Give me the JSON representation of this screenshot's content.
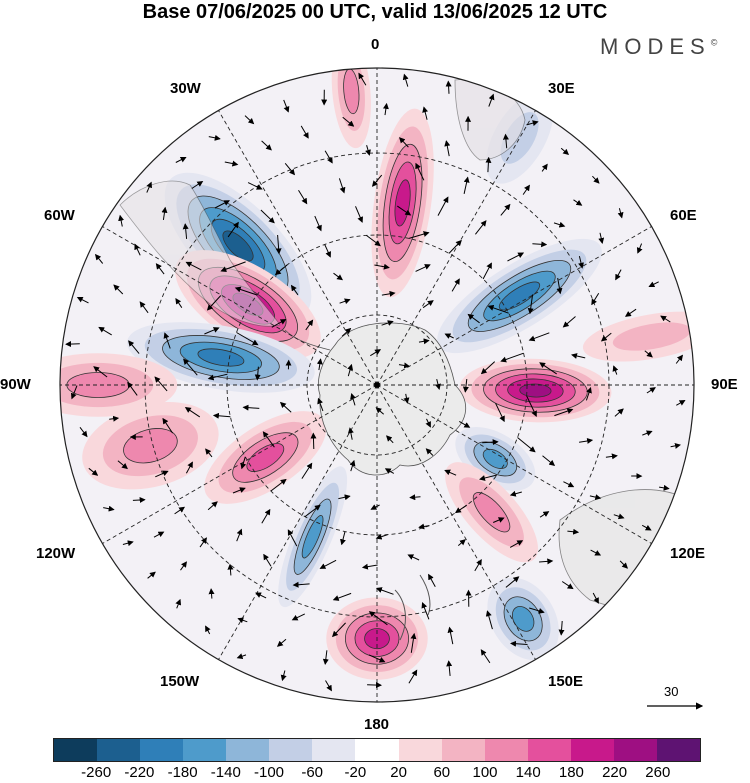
{
  "title": "Base 07/06/2025 00 UTC, valid 13/06/2025 12 UTC",
  "brand": "MODES",
  "brand_mark": "©",
  "map_labels": {
    "lon_0": "0",
    "lon_30e": "30E",
    "lon_60e": "60E",
    "lon_90e": "90E",
    "lon_120e": "120E",
    "lon_150e": "150E",
    "lon_180": "180",
    "lon_150w": "150W",
    "lon_120w": "120W",
    "lon_90w": "90W",
    "lon_60w": "60W",
    "lon_30w": "30W"
  },
  "vector_scale": {
    "value": "30"
  },
  "colorbar": {
    "colors": [
      "#0d3c5c",
      "#1c5f8f",
      "#2f7fb8",
      "#4e9bcb",
      "#8eb6d9",
      "#c3cfe6",
      "#e4e6f1",
      "#ffffff",
      "#f9d8dc",
      "#f3b4c3",
      "#ee88ae",
      "#e4509d",
      "#c8198b",
      "#9e0f82",
      "#5e1372"
    ],
    "ticks": [
      "-260",
      "-220",
      "-180",
      "-140",
      "-100",
      "-60",
      "-20",
      "20",
      "60",
      "100",
      "140",
      "180",
      "220",
      "260"
    ]
  },
  "anomalies": [
    {
      "sign": "neg",
      "level": 5,
      "angle": -45,
      "r": 0.62,
      "rx": 0.13,
      "ry": 0.3
    },
    {
      "sign": "pos",
      "level": 5,
      "angle": -58,
      "r": 0.48,
      "rx": 0.12,
      "ry": 0.26
    },
    {
      "sign": "pos",
      "level": 4,
      "angle": 8,
      "r": 0.58,
      "rx": 0.09,
      "ry": 0.3
    },
    {
      "sign": "neg",
      "level": 4,
      "angle": 58,
      "r": 0.53,
      "rx": 0.1,
      "ry": 0.3
    },
    {
      "sign": "pos",
      "level": 5,
      "angle": 92,
      "r": 0.5,
      "rx": 0.1,
      "ry": 0.24
    },
    {
      "sign": "neg",
      "level": 3,
      "angle": 122,
      "r": 0.44,
      "rx": 0.08,
      "ry": 0.14
    },
    {
      "sign": "pos",
      "level": 2,
      "angle": 138,
      "r": 0.54,
      "rx": 0.08,
      "ry": 0.2
    },
    {
      "sign": "neg",
      "level": 3,
      "angle": 148,
      "r": 0.87,
      "rx": 0.1,
      "ry": 0.14
    },
    {
      "sign": "pos",
      "level": 4,
      "angle": 180,
      "r": 0.8,
      "rx": 0.16,
      "ry": 0.13
    },
    {
      "sign": "neg",
      "level": 3,
      "angle": 203,
      "r": 0.52,
      "rx": 0.06,
      "ry": 0.24
    },
    {
      "sign": "pos",
      "level": 3,
      "angle": 237,
      "r": 0.42,
      "rx": 0.1,
      "ry": 0.22
    },
    {
      "sign": "pos",
      "level": 2,
      "angle": 255,
      "r": 0.74,
      "rx": 0.13,
      "ry": 0.22
    },
    {
      "sign": "neg",
      "level": 4,
      "angle": 280,
      "r": 0.5,
      "rx": 0.1,
      "ry": 0.3
    },
    {
      "sign": "pos",
      "level": 2,
      "angle": -90,
      "r": 0.88,
      "rx": 0.1,
      "ry": 0.25
    },
    {
      "sign": "pos",
      "level": 2,
      "angle": -5,
      "r": 0.93,
      "rx": 0.06,
      "ry": 0.18
    },
    {
      "sign": "neg",
      "level": 1,
      "angle": 30,
      "r": 0.9,
      "rx": 0.08,
      "ry": 0.16
    },
    {
      "sign": "pos",
      "level": 1,
      "angle": 80,
      "r": 0.88,
      "rx": 0.07,
      "ry": 0.22
    }
  ]
}
